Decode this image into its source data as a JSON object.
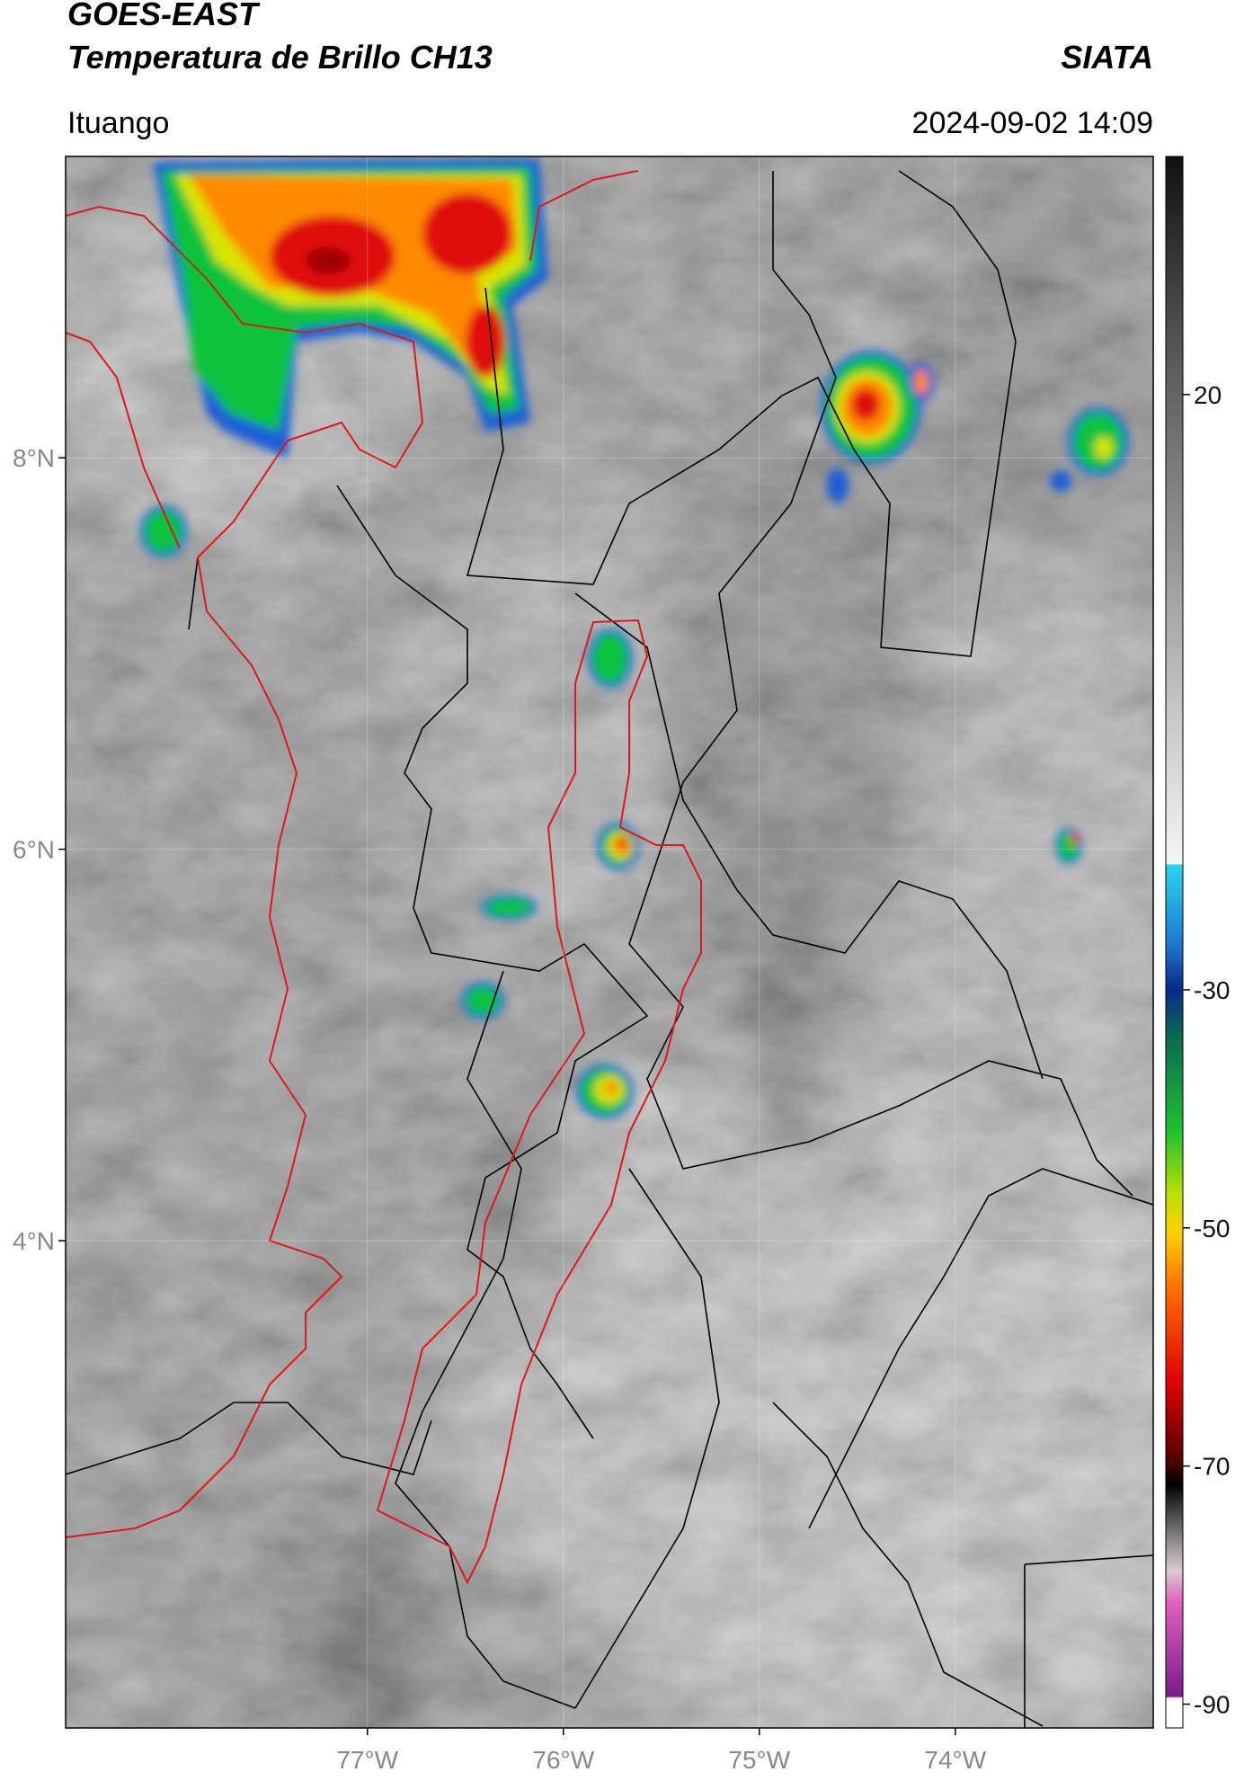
{
  "header": {
    "title": "GOES-EAST",
    "subtitle": "Temperatura de Brillo CH13",
    "brand": "SIATA",
    "location": "Ituango",
    "timestamp": "2024-09-02 14:09"
  },
  "map": {
    "xlim": [
      -78.54,
      -72.99
    ],
    "ylim": [
      1.51,
      9.54
    ],
    "xticks": [
      {
        "value": -77,
        "label": "77°W"
      },
      {
        "value": -76,
        "label": "76°W"
      },
      {
        "value": -75,
        "label": "75°W"
      },
      {
        "value": -74,
        "label": "74°W"
      }
    ],
    "yticks": [
      {
        "value": 8,
        "label": "8°N"
      },
      {
        "value": 6,
        "label": "6°N"
      },
      {
        "value": 4,
        "label": "4°N"
      }
    ],
    "grid": true
  },
  "colorbar": {
    "lim": [
      -92,
      40
    ],
    "ticks": [
      20,
      -30,
      -50,
      -70,
      -90
    ]
  }
}
